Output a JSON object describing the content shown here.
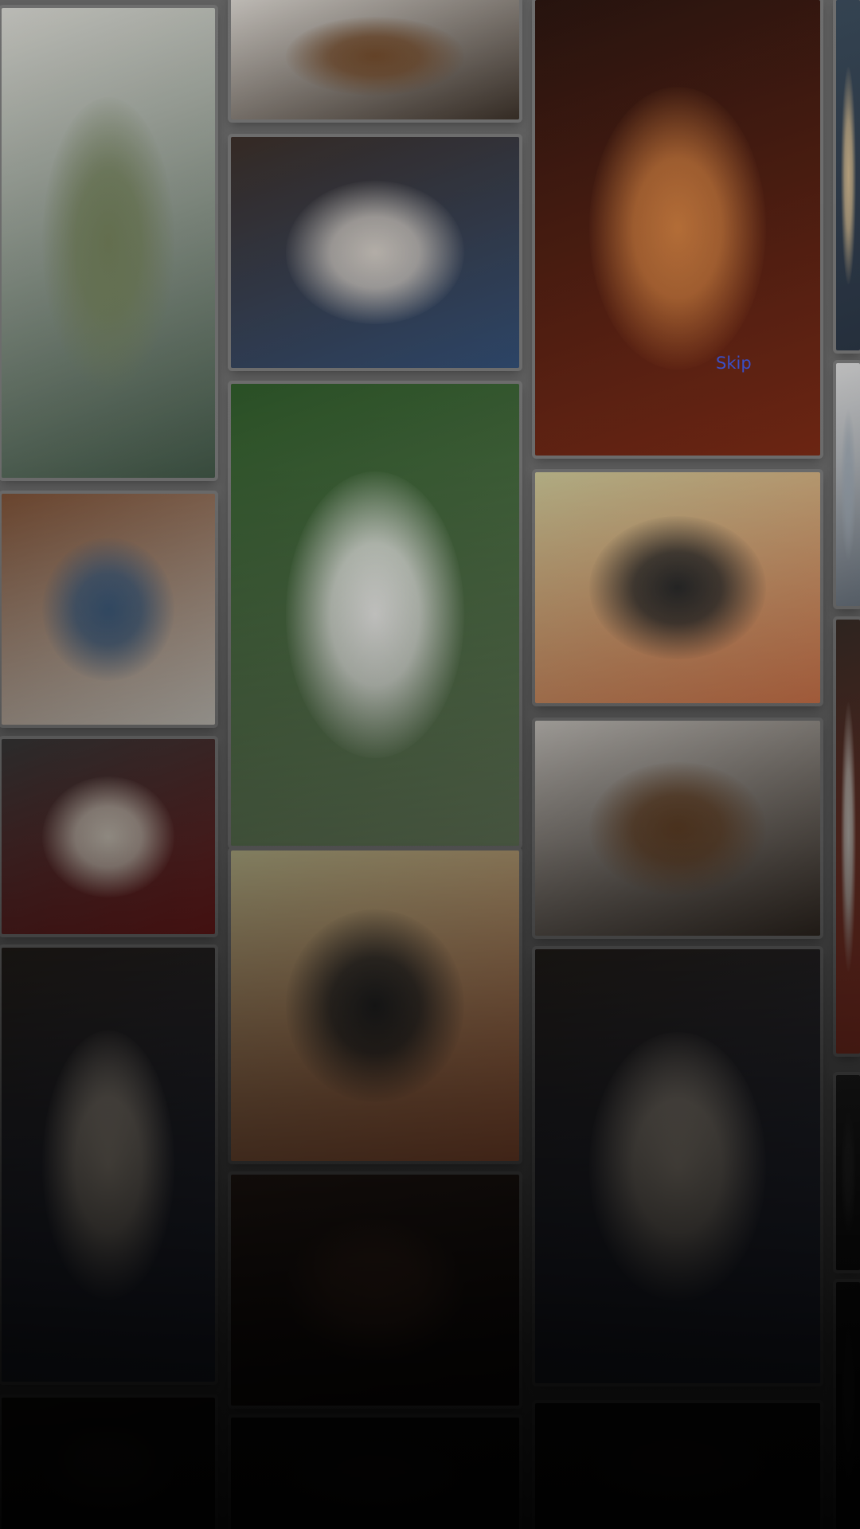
{
  "onboarding": {
    "skip_label": "Skip"
  },
  "gallery": {
    "columns": [
      {
        "name": "column-1",
        "tiles": [
          {
            "name": "photo-living-room-dog",
            "colors": [
              "#cfcfc9",
              "#6f7c58",
              "#3f5545"
            ]
          },
          {
            "name": "photo-dog-on-bed",
            "colors": [
              "#7a4f35",
              "#3d5a7a",
              "#c7c3bb"
            ]
          },
          {
            "name": "photo-dog-in-kennel",
            "colors": [
              "#3c3c3c",
              "#d9d0c3",
              "#7a1e1e"
            ]
          },
          {
            "name": "photo-person-hugging-dog-dark",
            "colors": [
              "#2b2520",
              "#d8cbb9",
              "#3a4460"
            ]
          },
          {
            "name": "photo-bottom-tile-1",
            "colors": [
              "#201c18",
              "#35302a",
              "#111111"
            ]
          }
        ]
      },
      {
        "name": "column-2",
        "tiles": [
          {
            "name": "photo-owner-with-dog-leash",
            "colors": [
              "#d7d3cd",
              "#6f4a2c",
              "#3a3028"
            ]
          },
          {
            "name": "photo-person-hugging-husky",
            "colors": [
              "#3a2e28",
              "#c9c3bc",
              "#324d73"
            ]
          },
          {
            "name": "photo-woman-with-samoyed",
            "colors": [
              "#2f5a2a",
              "#f1f1ee",
              "#6b8060"
            ]
          },
          {
            "name": "photo-spaniel-with-ball",
            "colors": [
              "#c9c495",
              "#2c2c2c",
              "#d97a4e"
            ]
          },
          {
            "name": "photo-dog-indoors-dark",
            "colors": [
              "#3c2a22",
              "#5a3a2a",
              "#1b1412"
            ]
          },
          {
            "name": "photo-bottom-tile-2",
            "colors": [
              "#1a1714",
              "#2a2420",
              "#0f0f0f"
            ]
          }
        ]
      },
      {
        "name": "column-3",
        "tiles": [
          {
            "name": "photo-golden-retriever-autumn",
            "colors": [
              "#2a1510",
              "#c97a3e",
              "#7a2a15"
            ]
          },
          {
            "name": "photo-spaniel-with-ball-2",
            "colors": [
              "#c9c495",
              "#2c2c2c",
              "#d97a4e"
            ]
          },
          {
            "name": "photo-owner-with-dog-leash-2",
            "colors": [
              "#d7d3cd",
              "#6f4a2c",
              "#3a3028"
            ]
          },
          {
            "name": "photo-person-hugging-dog-dark-2",
            "colors": [
              "#2b2520",
              "#d8cbb9",
              "#3a4460"
            ]
          },
          {
            "name": "photo-bottom-tile-3",
            "colors": [
              "#1a1714",
              "#2a2420",
              "#0f0f0f"
            ]
          }
        ]
      },
      {
        "name": "column-4",
        "tiles": [
          {
            "name": "photo-edge-tile-1",
            "colors": [
              "#3a4a5a",
              "#c7b08a",
              "#2a3544"
            ]
          },
          {
            "name": "photo-edge-tile-2",
            "colors": [
              "#d5d5d5",
              "#9aa4ae",
              "#6b7580"
            ]
          },
          {
            "name": "photo-edge-tile-3",
            "colors": [
              "#3a2e28",
              "#c9c3bc",
              "#a03a2a"
            ]
          },
          {
            "name": "photo-edge-tile-4",
            "colors": [
              "#2a2a2a",
              "#3a3a3a",
              "#1a1a1a"
            ]
          },
          {
            "name": "photo-edge-tile-5",
            "colors": [
              "#1a1a1a",
              "#2a2a2a",
              "#111111"
            ]
          }
        ]
      }
    ]
  }
}
